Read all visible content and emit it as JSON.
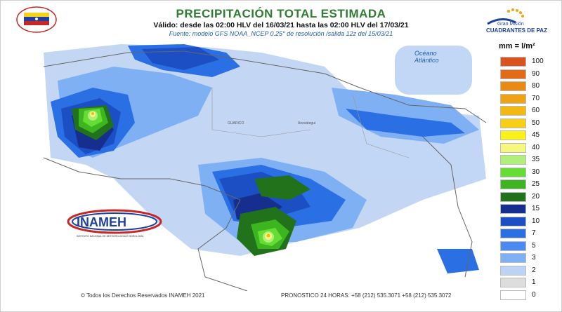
{
  "header": {
    "title": "PRECIPITACIÓN TOTAL ESTIMADA",
    "subtitle": "Válido: desde las 02:00 HLV del 16/03/21 hasta las 02:00 HLV del 17/03/21",
    "source": "Fuente: modelo GFS NOAA_NCEP 0.25° de resolución /salida 12z del 15/03/21"
  },
  "map": {
    "ocean_label_1": "Océano",
    "ocean_label_2": "Atlántico",
    "region_label": "GUARICO",
    "place_label": "Anzoátegui"
  },
  "logos": {
    "inameh_text": "INAMEH",
    "inameh_caption": "INSTITUTO NACIONAL DE METEOROLOGÍA E HIDROLOGÍA",
    "partner_line_1": "Gran Misión",
    "partner_line_2": "CUADRANTES DE PAZ"
  },
  "legend": {
    "title": "mm = l/m²",
    "items": [
      {
        "label": "100",
        "color": "#d9531e"
      },
      {
        "label": "90",
        "color": "#e36b17"
      },
      {
        "label": "80",
        "color": "#ea8a12"
      },
      {
        "label": "70",
        "color": "#eda313"
      },
      {
        "label": "60",
        "color": "#f3b812"
      },
      {
        "label": "50",
        "color": "#f7cf14"
      },
      {
        "label": "45",
        "color": "#faf218"
      },
      {
        "label": "40",
        "color": "#f6f77d"
      },
      {
        "label": "35",
        "color": "#aef07a"
      },
      {
        "label": "30",
        "color": "#66dd35"
      },
      {
        "label": "25",
        "color": "#3cb521"
      },
      {
        "label": "20",
        "color": "#21721b"
      },
      {
        "label": "15",
        "color": "#162f8e"
      },
      {
        "label": "10",
        "color": "#1d4fc4"
      },
      {
        "label": "7",
        "color": "#2a6fe3"
      },
      {
        "label": "5",
        "color": "#4a8af2"
      },
      {
        "label": "3",
        "color": "#7fb0f3"
      },
      {
        "label": "2",
        "color": "#bcd3f4"
      },
      {
        "label": "1",
        "color": "#dddddd"
      },
      {
        "label": "0",
        "color": "#ffffff"
      }
    ]
  },
  "footer": {
    "copyright": "© Todos los Derechos Reservados INAMEH 2021",
    "forecast": "PRONOSTICO 24 HORAS: +58 (212) 535.3071  +58 (212) 535.3072"
  }
}
